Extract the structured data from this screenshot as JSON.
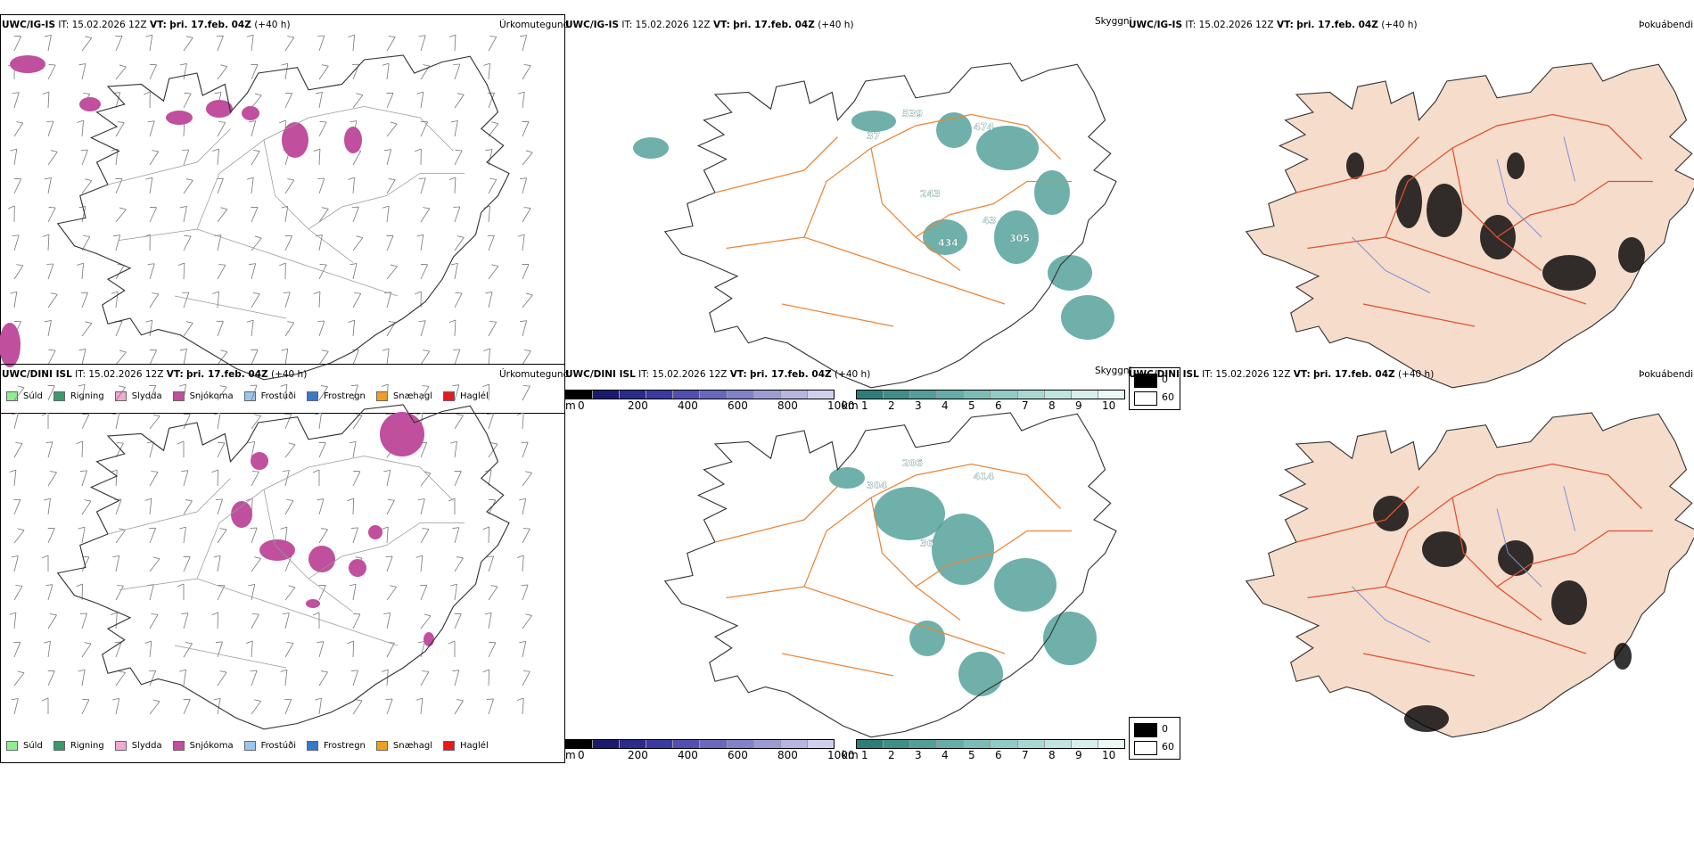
{
  "rows": [
    {
      "model": "UWC/IG-IS",
      "it_label": "IT:",
      "it_value": "15.02.2026 12Z",
      "vt_label": "VT:",
      "vt_value": "þri. 17.feb. 04Z",
      "lead": "(+40 h)",
      "precip_type_title": "Úrkomutegund",
      "visibility_title": "Skyggni",
      "fog_title": "Þokuábendi",
      "visibility_labels": [
        "539",
        "37",
        "474",
        "243",
        "43",
        "305",
        "434"
      ]
    },
    {
      "model": "UWC/DINI ISL",
      "it_label": "IT:",
      "it_value": "15.02.2026 12Z",
      "vt_label": "VT:",
      "vt_value": "þri. 17.feb. 04Z",
      "lead": "(+40 h)",
      "precip_type_title": "Úrkomutegund",
      "visibility_title": "Skyggni",
      "fog_title": "Þokuábendi",
      "visibility_labels": [
        "206",
        "304",
        "414",
        "36"
      ]
    }
  ],
  "precip_legend": [
    {
      "label": "Súld",
      "color": "#90ee90"
    },
    {
      "label": "Rigning",
      "color": "#3a9a6a"
    },
    {
      "label": "Slydda",
      "color": "#f4a8d4"
    },
    {
      "label": "Snjókoma",
      "color": "#c04f9e"
    },
    {
      "label": "Frostúði",
      "color": "#9ac6f0"
    },
    {
      "label": "Frostregn",
      "color": "#3a78c8"
    },
    {
      "label": "Snæhagl",
      "color": "#f0a020"
    },
    {
      "label": "Haglél",
      "color": "#e41a1c"
    }
  ],
  "m_scale": {
    "unit": "m",
    "ticks": [
      "0",
      "200",
      "400",
      "600",
      "800",
      "1000"
    ]
  },
  "km_scale": {
    "unit": "km",
    "ticks": [
      "1",
      "2",
      "3",
      "4",
      "5",
      "6",
      "7",
      "8",
      "9",
      "10"
    ]
  },
  "fog_legend": {
    "dark_label": "0",
    "light_label": "60"
  },
  "colors": {
    "snow": "#c04f9e",
    "visibility_fog": "#3f968e",
    "roads": "#e8873a",
    "fog_land": "#f5dccb",
    "fog_roads": "#e05030",
    "rivers": "#7b8fe0"
  }
}
